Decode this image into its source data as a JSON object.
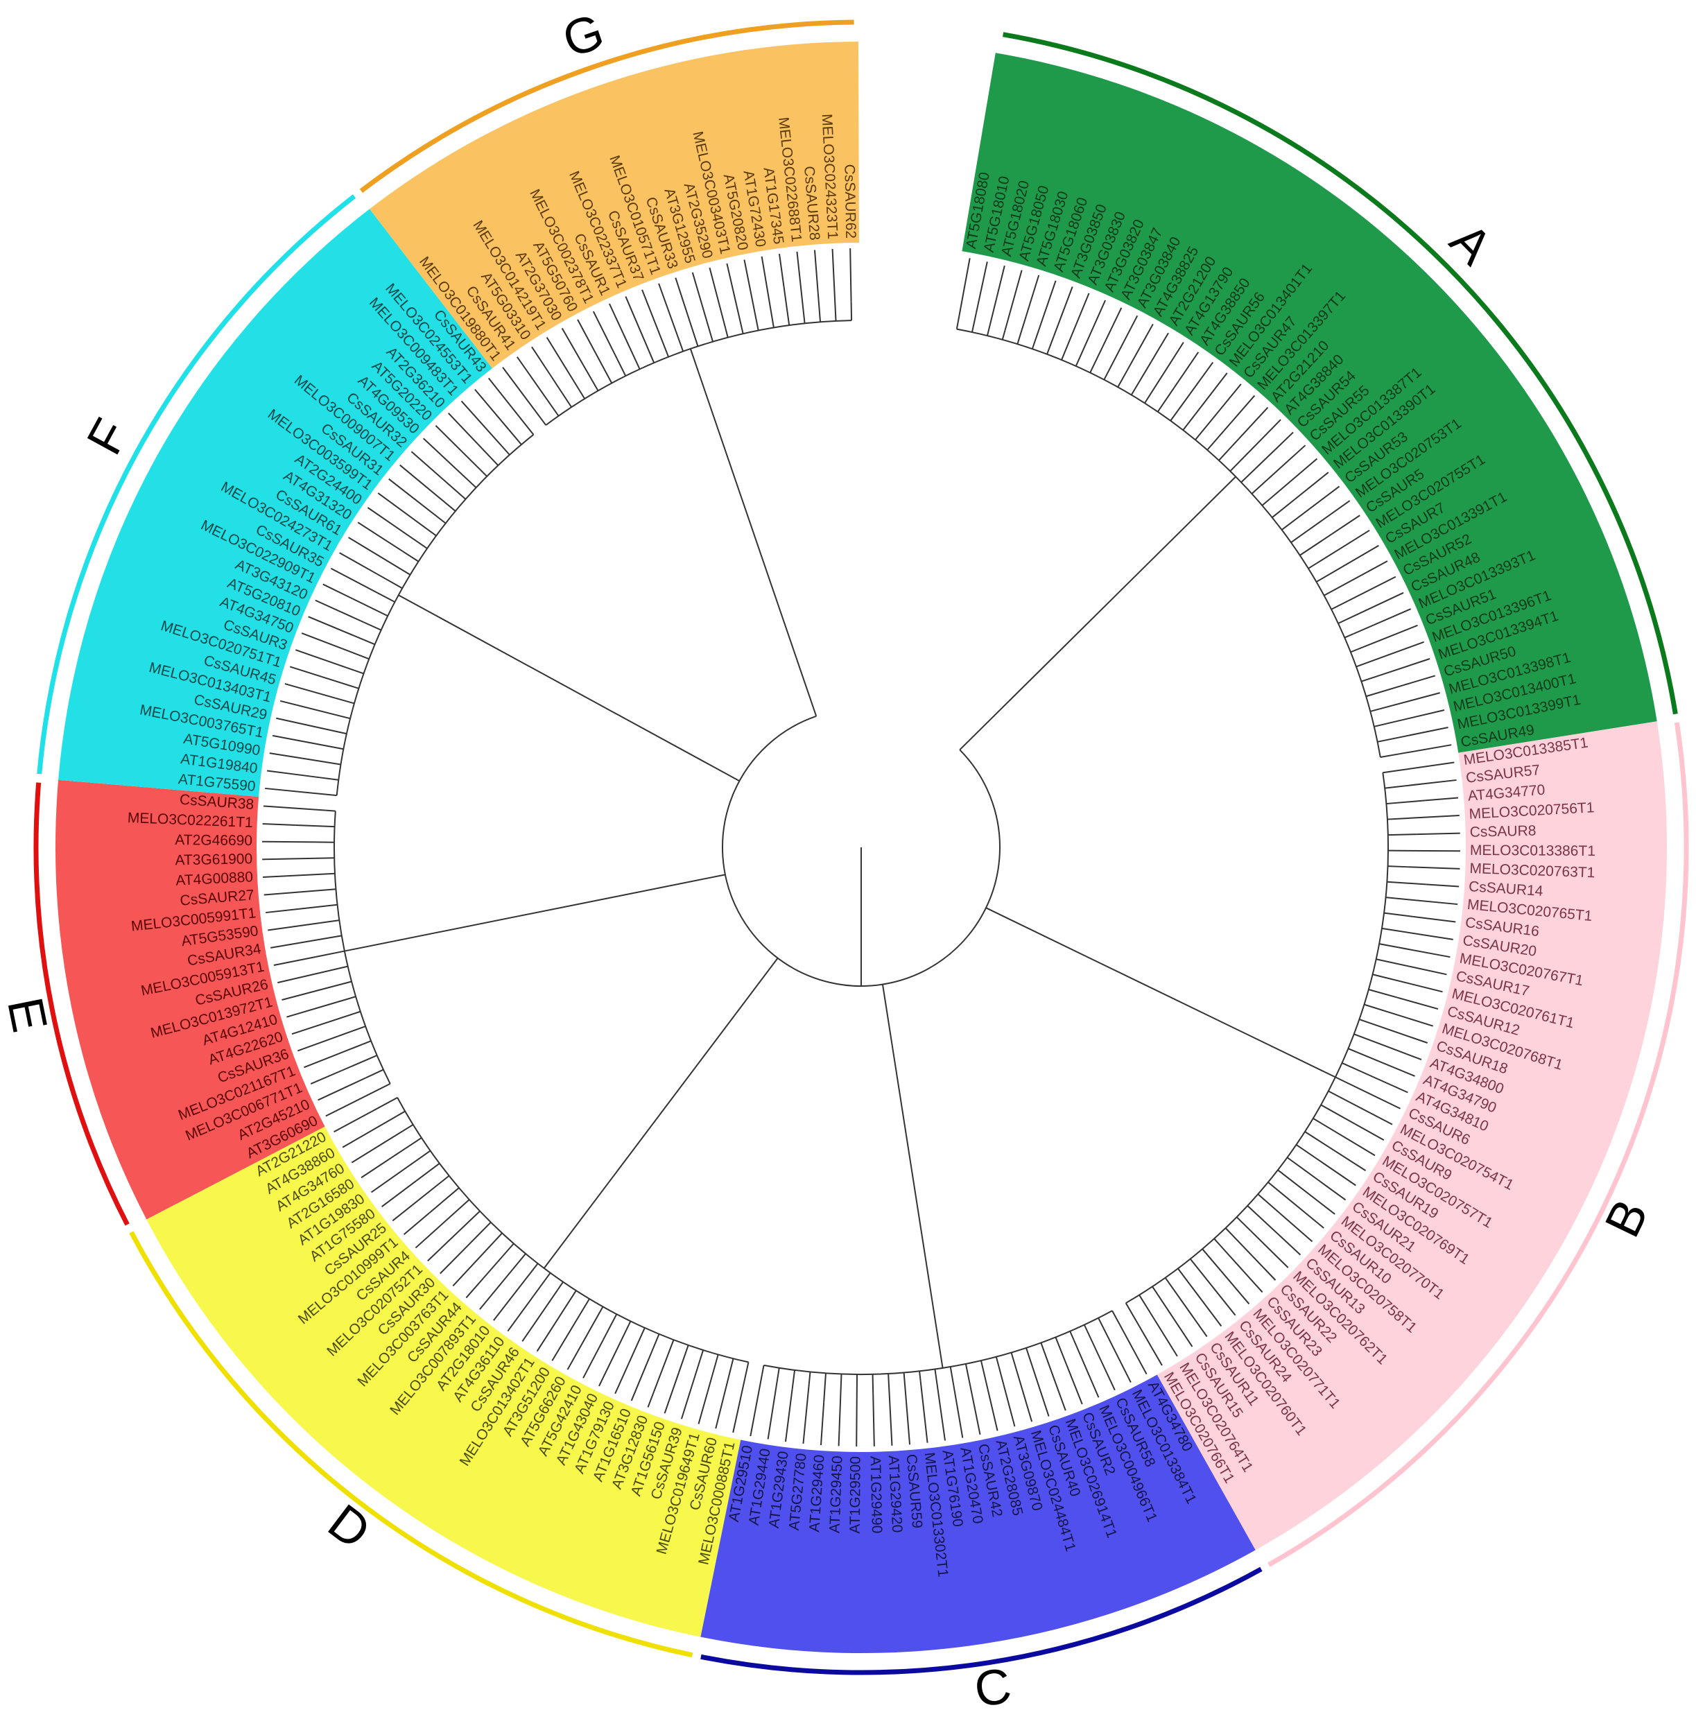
{
  "groups": [
    {
      "label": "A",
      "color": "#1f9a4a",
      "text_color": "#0c3a1a",
      "ring_color": "#0b7a1c",
      "leaves": [
        "AT5G18080",
        "AT5G18010",
        "AT5G18020",
        "AT5G18050",
        "AT5G18030",
        "AT5G18060",
        "AT3G03850",
        "AT3G03830",
        "AT3G03820",
        "AT3G03847",
        "AT3G03840",
        "AT4G38825",
        "AT2G21200",
        "AT4G13790",
        "AT4G38850",
        "CsSAUR56",
        "MELO3C013401T1",
        "CsSAUR47",
        "MELO3C013397T1",
        "AT2G21210",
        "AT4G38840",
        "CsSAUR54",
        "CsSAUR55",
        "MELO3C013387T1",
        "MELO3C013390T1",
        "CsSAUR53",
        "MELO3C020753T1",
        "CsSAUR5",
        "MELO3C020755T1",
        "CsSAUR7",
        "MELO3C013391T1",
        "CsSAUR52",
        "CsSAUR48",
        "MELO3C013393T1",
        "CsSAUR51",
        "MELO3C013396T1",
        "MELO3C013394T1",
        "CsSAUR50",
        "MELO3C013398T1",
        "MELO3C013400T1",
        "MELO3C013399T1",
        "CsSAUR49"
      ]
    },
    {
      "label": "B",
      "color": "#ffd3dc",
      "text_color": "#7a3444",
      "ring_color": "#ffc4cf",
      "leaves": [
        "MELO3C013385T1",
        "CsSAUR57",
        "AT4G34770",
        "MELO3C020756T1",
        "CsSAUR8",
        "MELO3C013386T1",
        "MELO3C020763T1",
        "CsSAUR14",
        "MELO3C020765T1",
        "CsSAUR16",
        "CsSAUR20",
        "MELO3C020767T1",
        "CsSAUR17",
        "MELO3C020761T1",
        "CsSAUR12",
        "MELO3C020768T1",
        "CsSAUR18",
        "AT4G34800",
        "AT4G34790",
        "AT4G34810",
        "CsSAUR6",
        "MELO3C020754T1",
        "CsSAUR9",
        "MELO3C020757T1",
        "CsSAUR19",
        "MELO3C020769T1",
        "CsSAUR21",
        "MELO3C020770T1",
        "CsSAUR10",
        "MELO3C020758T1",
        "CsSAUR13",
        "MELO3C020762T1",
        "CsSAUR22",
        "CsSAUR23",
        "MELO3C020771T1",
        "CsSAUR24",
        "MELO3C020760T1",
        "CsSAUR11",
        "CsSAUR15",
        "MELO3C020764T1",
        "MELO3C020766T1"
      ]
    },
    {
      "label": "C",
      "color": "#5050ee",
      "text_color": "#15154a",
      "ring_color": "#0a0aa0",
      "leaves": [
        "AT4G34780",
        "MELO3C013384T1",
        "CsSAUR58",
        "MELO3C004966T1",
        "CsSAUR2",
        "MELO3C026914T1",
        "CsSAUR40",
        "MELO3C024484T1",
        "AT3G09870",
        "AT2G28085",
        "CsSAUR42",
        "AT1G20470",
        "AT1G76190",
        "MELO3C013302T1",
        "CsSAUR59",
        "AT1G29420",
        "AT1G29490",
        "AT1G29500",
        "AT1G29450",
        "AT1G29460",
        "AT5G27780",
        "AT1G29430",
        "AT1G29440",
        "AT1G29510"
      ]
    },
    {
      "label": "D",
      "color": "#f7f74c",
      "text_color": "#4a4a00",
      "ring_color": "#f0e000",
      "leaves": [
        "MELO3C000885T1",
        "CsSAUR60",
        "MELO3C019649T1",
        "CsSAUR39",
        "AT1G56150",
        "AT3G12830",
        "AT1G16510",
        "AT1G79130",
        "AT1G43040",
        "AT5G42410",
        "AT5G66260",
        "AT3G51200",
        "MELO3C013402T1",
        "CsSAUR46",
        "AT4G36110",
        "AT2G18010",
        "MELO3C007893T1",
        "CsSAUR44",
        "MELO3C003763T1",
        "CsSAUR30",
        "MELO3C020752T1",
        "CsSAUR4",
        "MELO3C010999T1",
        "CsSAUR25",
        "AT1G75580",
        "AT1G19830",
        "AT2G16580",
        "AT4G34760",
        "AT4G38860",
        "AT2G21220"
      ]
    },
    {
      "label": "E",
      "color": "#f75656",
      "text_color": "#5a0000",
      "ring_color": "#e01010",
      "leaves": [
        "AT3G60690",
        "AT2G45210",
        "MELO3C006771T1",
        "MELO3C021167T1",
        "CsSAUR36",
        "AT4G22620",
        "AT4G12410",
        "MELO3C013972T1",
        "CsSAUR26",
        "MELO3C005913T1",
        "CsSAUR34",
        "AT5G53590",
        "MELO3C005991T1",
        "CsSAUR27",
        "AT4G00880",
        "AT3G61900",
        "AT2G46690",
        "MELO3C022261T1",
        "CsSAUR38"
      ]
    },
    {
      "label": "F",
      "color": "#22e0e6",
      "text_color": "#004848",
      "ring_color": "#20e0e8",
      "leaves": [
        "AT1G75590",
        "AT1G19840",
        "AT5G10990",
        "MELO3C003765T1",
        "CsSAUR29",
        "MELO3C013403T1",
        "CsSAUR45",
        "MELO3C020751T1",
        "CsSAUR3",
        "AT4G34750",
        "AT5G20810",
        "AT3G43120",
        "MELO3C022909T1",
        "CsSAUR35",
        "MELO3C024273T1",
        "CsSAUR61",
        "AT4G31320",
        "AT2G24400",
        "MELO3C003599T1",
        "CsSAUR31",
        "MELO3C009007T1",
        "CsSAUR32",
        "AT4G09530",
        "AT5G20220",
        "AT2G36210",
        "MELO3C009483T1",
        "MELO3C024553T1",
        "CsSAUR43"
      ]
    },
    {
      "label": "G",
      "color": "#fbc262",
      "text_color": "#5a3a00",
      "ring_color": "#f0a020",
      "leaves": [
        "MELO3C019880T1",
        "CsSAUR41",
        "AT5G03310",
        "MELO3C014219T1",
        "AT2G37030",
        "AT5G50760",
        "MELO3C002378T1",
        "CsSAUR1",
        "MELO3C022337T1",
        "CsSAUR37",
        "MELO3C010571T1",
        "CsSAUR33",
        "AT3G12955",
        "AT2G35290",
        "MELO3C003403T1",
        "AT5G20820",
        "AT1G72430",
        "AT1G17345",
        "MELO3C022688T1",
        "CsSAUR28",
        "MELO3C024323T1",
        "CsSAUR62"
      ]
    }
  ]
}
